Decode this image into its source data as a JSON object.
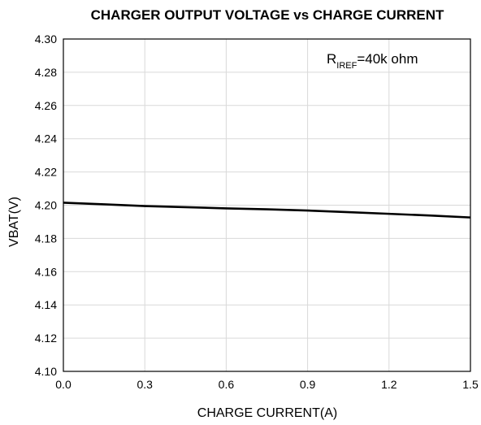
{
  "chart_data": {
    "type": "line",
    "title": "CHARGER OUTPUT VOLTAGE vs CHARGE CURRENT",
    "xlabel": "CHARGE CURRENT(A)",
    "ylabel": "VBAT(V)",
    "xlim": [
      0.0,
      1.5
    ],
    "ylim": [
      4.1,
      4.3
    ],
    "xticks": [
      "0.0",
      "0.3",
      "0.6",
      "0.9",
      "1.2",
      "1.5"
    ],
    "yticks": [
      "4.10",
      "4.12",
      "4.14",
      "4.16",
      "4.18",
      "4.20",
      "4.22",
      "4.24",
      "4.26",
      "4.28",
      "4.30"
    ],
    "grid": true,
    "annotation": {
      "main": "R",
      "sub": "IREF",
      "rest": "=40k ohm"
    },
    "series": [
      {
        "x": [
          0.0,
          0.15,
          0.3,
          0.45,
          0.6,
          0.75,
          0.9,
          1.05,
          1.2,
          1.35,
          1.5
        ],
        "y": [
          4.2015,
          4.2005,
          4.1995,
          4.1988,
          4.1981,
          4.1975,
          4.1968,
          4.1958,
          4.1948,
          4.1938,
          4.1926
        ]
      }
    ],
    "colors": {
      "line": "#000000",
      "grid": "#d9d9d9",
      "frame": "#000000"
    }
  }
}
